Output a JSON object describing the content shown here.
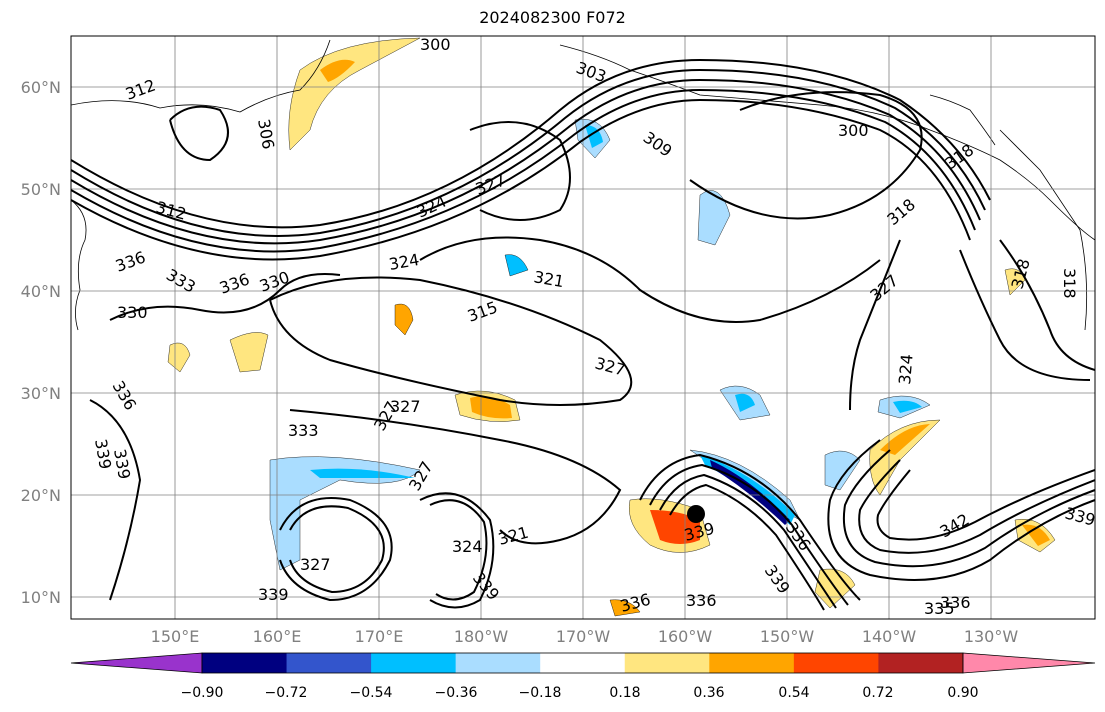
{
  "title": "2024082300 F072",
  "map": {
    "lon_labels": [
      "150°E",
      "160°E",
      "170°E",
      "180°W",
      "170°W",
      "160°W",
      "150°W",
      "140°W",
      "130°W"
    ],
    "lat_labels": [
      "60°N",
      "50°N",
      "40°N",
      "30°N",
      "20°N",
      "10°N"
    ],
    "contour_labels": [
      {
        "text": "312"
      },
      {
        "text": "306"
      },
      {
        "text": "300"
      },
      {
        "text": "303"
      },
      {
        "text": "309"
      },
      {
        "text": "300"
      },
      {
        "text": "312"
      },
      {
        "text": "327"
      },
      {
        "text": "324"
      },
      {
        "text": "324"
      },
      {
        "text": "321"
      },
      {
        "text": "318"
      },
      {
        "text": "336"
      },
      {
        "text": "333"
      },
      {
        "text": "336"
      },
      {
        "text": "330"
      },
      {
        "text": "330"
      },
      {
        "text": "315"
      },
      {
        "text": "327"
      },
      {
        "text": "327"
      },
      {
        "text": "327"
      },
      {
        "text": "324"
      },
      {
        "text": "318"
      },
      {
        "text": "336"
      },
      {
        "text": "339"
      },
      {
        "text": "339"
      },
      {
        "text": "333"
      },
      {
        "text": "327"
      },
      {
        "text": "327"
      },
      {
        "text": "327"
      },
      {
        "text": "339"
      },
      {
        "text": "324"
      },
      {
        "text": "321"
      },
      {
        "text": "339"
      },
      {
        "text": "336"
      },
      {
        "text": "339"
      },
      {
        "text": "336"
      },
      {
        "text": "336"
      },
      {
        "text": "335"
      },
      {
        "text": "336"
      },
      {
        "text": "342"
      },
      {
        "text": "339"
      },
      {
        "text": "339"
      },
      {
        "text": "318"
      },
      {
        "text": "318"
      }
    ],
    "colors": {
      "contour": "#000000",
      "grid": "#808080",
      "coast": "#000000"
    }
  },
  "colorbar": {
    "ticks": [
      "−0.90",
      "−0.72",
      "−0.54",
      "−0.36",
      "−0.18",
      "0.18",
      "0.36",
      "0.54",
      "0.72",
      "0.90"
    ],
    "colors": [
      "#9933cc",
      "#000080",
      "#3355cc",
      "#00bfff",
      "#aaddff",
      "#ffffff",
      "#ffe680",
      "#ffa500",
      "#ff4500",
      "#b22222",
      "#ff88aa"
    ]
  }
}
